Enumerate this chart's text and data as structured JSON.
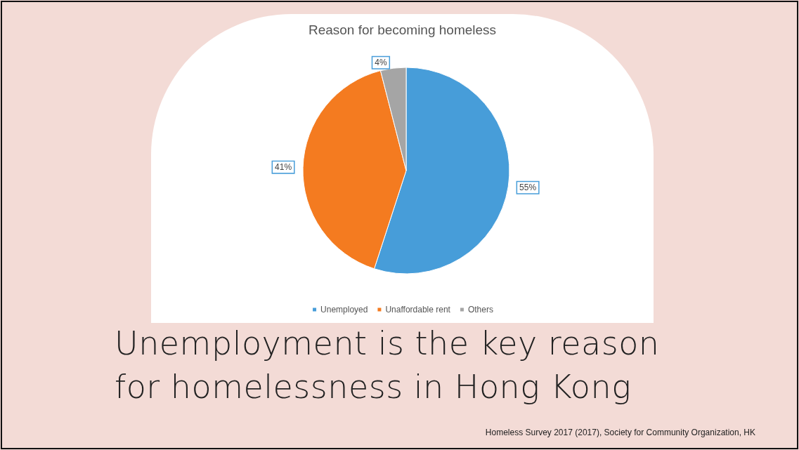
{
  "chart_data": {
    "type": "pie",
    "title": "Reason for becoming homeless",
    "subtitle": "Unemployment is the key reason for homelessness in Hong Kong",
    "categories": [
      "Unemployed",
      "Unaffordable rent",
      "Others"
    ],
    "values": [
      55,
      41,
      4
    ],
    "colors": [
      "#479dd9",
      "#f47b20",
      "#a5a5a5"
    ],
    "value_labels": [
      "55%",
      "41%",
      "4%"
    ],
    "legend": "bottom",
    "annotations": [
      "Homeless Survey 2017 (2017), Society for Community Organization, HK"
    ]
  }
}
